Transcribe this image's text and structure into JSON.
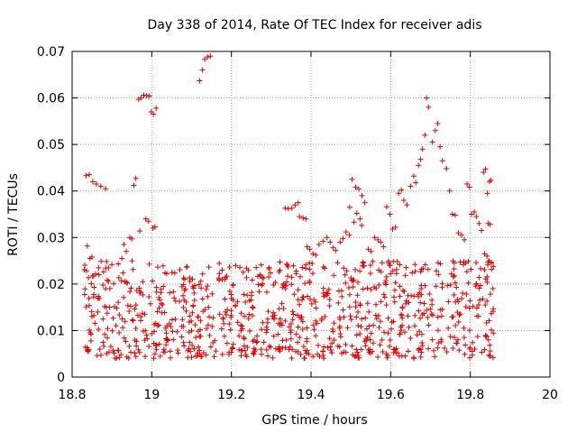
{
  "chart_data": {
    "type": "scatter",
    "title": "Day 338 of 2014, Rate Of TEC Index for receiver adis",
    "xlabel": "GPS time / hours",
    "ylabel": "ROTI / TECUs",
    "xlim": [
      18.8,
      20.0
    ],
    "ylim": [
      0.0,
      0.07
    ],
    "xticks": [
      18.8,
      19.0,
      19.2,
      19.4,
      19.6,
      19.8,
      20.0
    ],
    "xtick_labels": [
      "18.8",
      "19",
      "19.2",
      "19.4",
      "19.6",
      "19.8",
      "20"
    ],
    "yticks": [
      0,
      0.01,
      0.02,
      0.03,
      0.04,
      0.05,
      0.06,
      0.07
    ],
    "ytick_labels": [
      "0",
      "0.01",
      "0.02",
      "0.03",
      "0.04",
      "0.05",
      "0.06",
      "0.07"
    ],
    "grid": true,
    "marker": "+",
    "marker_color": "#e00000",
    "series": [
      {
        "name": "ROTI",
        "points": [
          [
            18.835,
            0.0433
          ],
          [
            18.843,
            0.0435
          ],
          [
            18.852,
            0.042
          ],
          [
            18.861,
            0.0415
          ],
          [
            18.872,
            0.041
          ],
          [
            18.884,
            0.0405
          ],
          [
            18.838,
            0.0282
          ],
          [
            18.845,
            0.0255
          ],
          [
            18.85,
            0.0258
          ],
          [
            18.955,
            0.0412
          ],
          [
            18.96,
            0.0427
          ],
          [
            18.967,
            0.0597
          ],
          [
            18.973,
            0.06
          ],
          [
            18.98,
            0.0606
          ],
          [
            18.987,
            0.0605
          ],
          [
            18.994,
            0.0604
          ],
          [
            18.999,
            0.057
          ],
          [
            19.004,
            0.0565
          ],
          [
            19.011,
            0.0578
          ],
          [
            18.985,
            0.034
          ],
          [
            18.992,
            0.0335
          ],
          [
            19.003,
            0.032
          ],
          [
            19.008,
            0.0323
          ],
          [
            18.945,
            0.03
          ],
          [
            18.95,
            0.0297
          ],
          [
            18.97,
            0.0314
          ],
          [
            18.93,
            0.0285
          ],
          [
            18.936,
            0.027
          ],
          [
            18.925,
            0.0255
          ],
          [
            19.12,
            0.0637
          ],
          [
            19.127,
            0.066
          ],
          [
            19.133,
            0.0683
          ],
          [
            19.14,
            0.0688
          ],
          [
            19.147,
            0.069
          ],
          [
            19.335,
            0.0363
          ],
          [
            19.343,
            0.0362
          ],
          [
            19.352,
            0.0363
          ],
          [
            19.36,
            0.037
          ],
          [
            19.368,
            0.0375
          ],
          [
            19.371,
            0.0345
          ],
          [
            19.38,
            0.0342
          ],
          [
            19.387,
            0.034
          ],
          [
            19.503,
            0.0425
          ],
          [
            19.512,
            0.0408
          ],
          [
            19.52,
            0.0404
          ],
          [
            19.528,
            0.039
          ],
          [
            19.535,
            0.0375
          ],
          [
            19.497,
            0.0365
          ],
          [
            19.515,
            0.0352
          ],
          [
            19.523,
            0.034
          ],
          [
            19.508,
            0.0333
          ],
          [
            19.527,
            0.0326
          ],
          [
            19.488,
            0.0312
          ],
          [
            19.496,
            0.0305
          ],
          [
            19.48,
            0.0298
          ],
          [
            19.473,
            0.029
          ],
          [
            19.59,
            0.0366
          ],
          [
            19.598,
            0.035
          ],
          [
            19.605,
            0.0318
          ],
          [
            19.612,
            0.0322
          ],
          [
            19.62,
            0.0395
          ],
          [
            19.627,
            0.0402
          ],
          [
            19.633,
            0.038
          ],
          [
            19.641,
            0.037
          ],
          [
            19.65,
            0.041
          ],
          [
            19.658,
            0.0432
          ],
          [
            19.663,
            0.0418
          ],
          [
            19.67,
            0.0455
          ],
          [
            19.675,
            0.0468
          ],
          [
            19.68,
            0.049
          ],
          [
            19.686,
            0.052
          ],
          [
            19.69,
            0.06
          ],
          [
            19.695,
            0.058
          ],
          [
            19.705,
            0.0505
          ],
          [
            19.712,
            0.053
          ],
          [
            19.718,
            0.0545
          ],
          [
            19.724,
            0.0495
          ],
          [
            19.73,
            0.0465
          ],
          [
            19.74,
            0.0448
          ],
          [
            19.748,
            0.04
          ],
          [
            19.755,
            0.035
          ],
          [
            19.762,
            0.0348
          ],
          [
            19.77,
            0.031
          ],
          [
            19.778,
            0.0305
          ],
          [
            19.785,
            0.0295
          ],
          [
            19.792,
            0.0415
          ],
          [
            19.798,
            0.0408
          ],
          [
            19.803,
            0.035
          ],
          [
            19.81,
            0.0355
          ],
          [
            19.815,
            0.0345
          ],
          [
            19.822,
            0.033
          ],
          [
            19.828,
            0.0315
          ],
          [
            19.833,
            0.044
          ],
          [
            19.838,
            0.0447
          ],
          [
            19.843,
            0.0395
          ],
          [
            19.848,
            0.042
          ],
          [
            19.852,
            0.0423
          ],
          [
            19.845,
            0.033
          ],
          [
            19.85,
            0.0328
          ],
          [
            19.836,
            0.0265
          ],
          [
            19.842,
            0.026
          ],
          [
            19.847,
            0.025
          ],
          [
            19.853,
            0.0245
          ],
          [
            19.56,
            0.03
          ],
          [
            19.568,
            0.0295
          ],
          [
            19.575,
            0.029
          ],
          [
            19.582,
            0.028
          ],
          [
            19.544,
            0.0275
          ],
          [
            19.551,
            0.027
          ],
          [
            19.44,
            0.03
          ],
          [
            19.448,
            0.029
          ],
          [
            19.455,
            0.0278
          ],
          [
            19.462,
            0.0272
          ],
          [
            19.42,
            0.0285
          ],
          [
            19.43,
            0.0292
          ],
          [
            19.39,
            0.028
          ],
          [
            19.397,
            0.0275
          ],
          [
            19.405,
            0.0265
          ],
          [
            19.412,
            0.0262
          ]
        ]
      }
    ]
  }
}
